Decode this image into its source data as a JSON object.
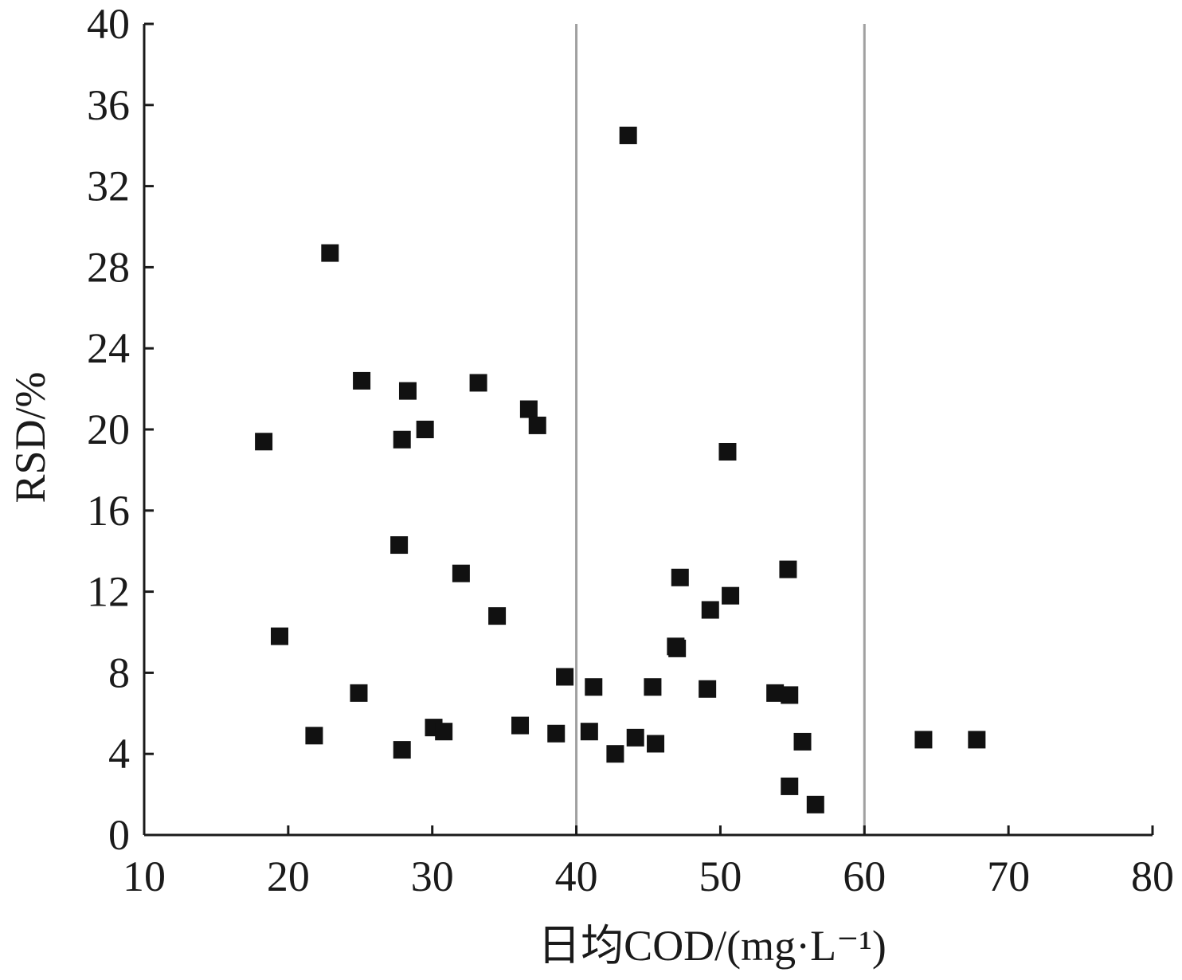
{
  "chart_data": {
    "type": "scatter",
    "title": "",
    "xlabel": "日均COD/(mg·L⁻¹)",
    "ylabel": "RSD/%",
    "xlim": [
      10,
      80
    ],
    "ylim": [
      0,
      40
    ],
    "x_ticks": [
      "10",
      "20",
      "30",
      "40",
      "50",
      "60",
      "70",
      "80"
    ],
    "y_ticks": [
      "0",
      "4",
      "8",
      "12",
      "16",
      "20",
      "24",
      "28",
      "32",
      "36",
      "40"
    ],
    "reference_lines_x": [
      40,
      60
    ],
    "grid": false,
    "legend": "none",
    "marker": "square",
    "marker_color": "#111111",
    "reference_line_color": "#a0a0a0",
    "series": [
      {
        "points": [
          [
            18.3,
            19.4
          ],
          [
            19.4,
            9.8
          ],
          [
            21.8,
            4.9
          ],
          [
            22.9,
            28.7
          ],
          [
            24.9,
            7.0
          ],
          [
            25.1,
            22.4
          ],
          [
            27.7,
            14.3
          ],
          [
            27.9,
            19.5
          ],
          [
            27.9,
            4.2
          ],
          [
            28.3,
            21.9
          ],
          [
            29.5,
            20.0
          ],
          [
            30.1,
            5.3
          ],
          [
            30.8,
            5.1
          ],
          [
            32.0,
            12.9
          ],
          [
            33.2,
            22.3
          ],
          [
            34.5,
            10.8
          ],
          [
            36.1,
            5.4
          ],
          [
            36.7,
            21.0
          ],
          [
            37.3,
            20.2
          ],
          [
            38.6,
            5.0
          ],
          [
            39.2,
            7.8
          ],
          [
            40.9,
            5.1
          ],
          [
            41.2,
            7.3
          ],
          [
            42.7,
            4.0
          ],
          [
            43.6,
            34.5
          ],
          [
            44.1,
            4.8
          ],
          [
            45.3,
            7.3
          ],
          [
            45.5,
            4.5
          ],
          [
            46.9,
            9.3
          ],
          [
            47.0,
            9.2
          ],
          [
            47.2,
            12.7
          ],
          [
            49.1,
            7.2
          ],
          [
            49.3,
            11.1
          ],
          [
            50.5,
            18.9
          ],
          [
            50.7,
            11.8
          ],
          [
            53.8,
            7.0
          ],
          [
            54.7,
            13.1
          ],
          [
            54.8,
            6.9
          ],
          [
            54.8,
            2.4
          ],
          [
            55.7,
            4.6
          ],
          [
            56.6,
            1.5
          ],
          [
            64.1,
            4.7
          ],
          [
            67.8,
            4.7
          ]
        ]
      }
    ]
  }
}
